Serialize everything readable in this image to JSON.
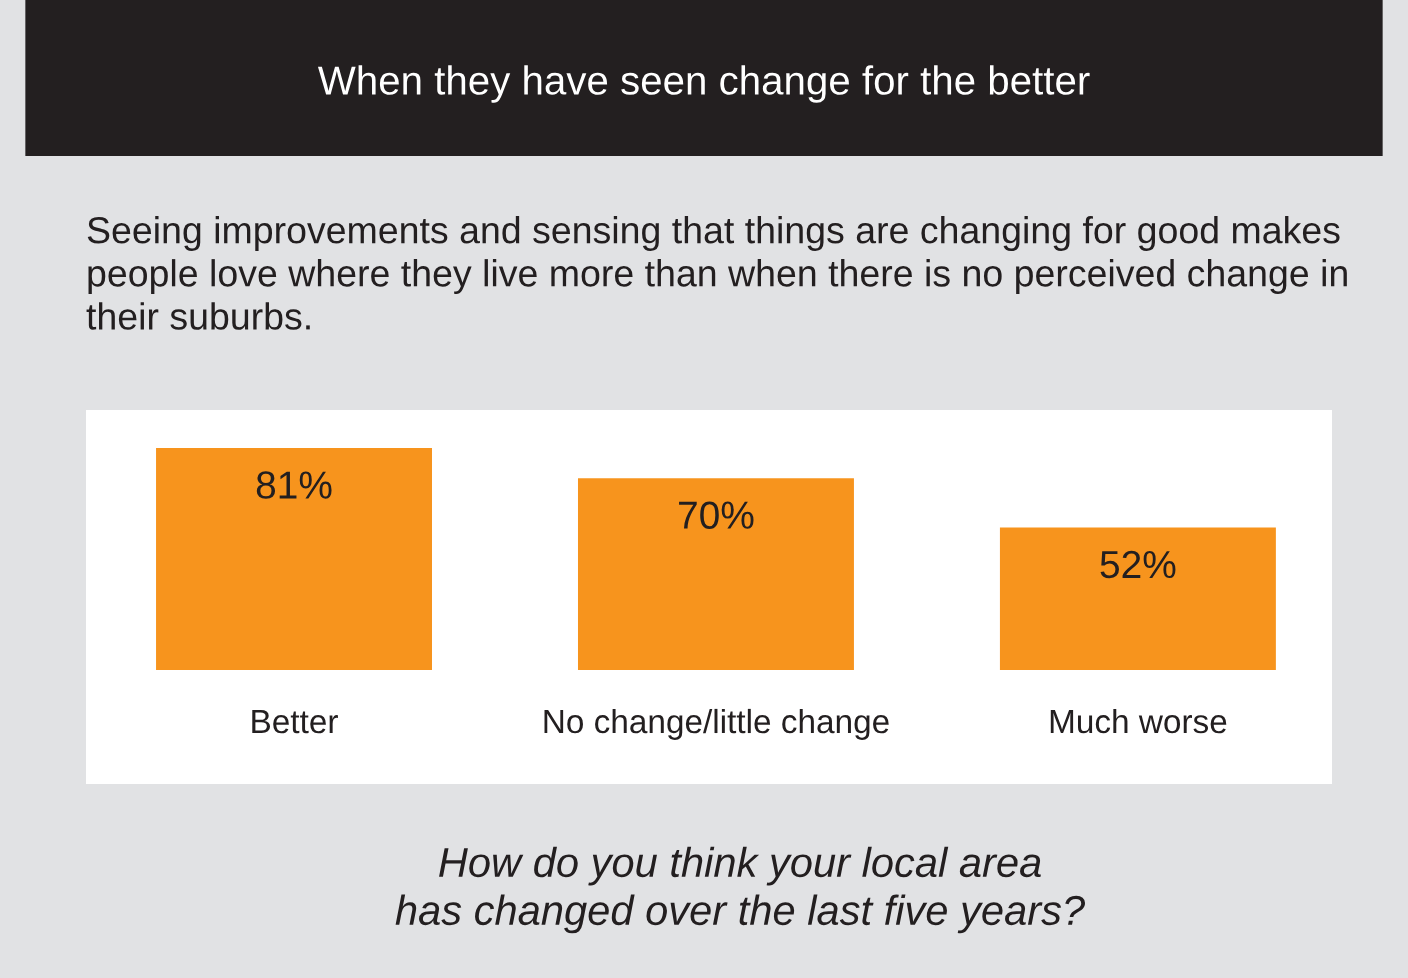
{
  "chart_data": {
    "type": "bar",
    "title": "When they have seen change for the better",
    "subtitle": "Seeing improvements and sensing that things are changing for good makes people love where they live more than when there is no perceived change in their suburbs.",
    "categories": [
      "Better",
      "No change/little change",
      "Much worse"
    ],
    "values": [
      81,
      70,
      52
    ],
    "color": "#f7941d",
    "value_labels": [
      "81%",
      "70%",
      "52%"
    ],
    "tick_labels": "x",
    "grid": false,
    "legend": false,
    "xlabel": "How do you think your local area\nhas changed over the last five years?"
  }
}
